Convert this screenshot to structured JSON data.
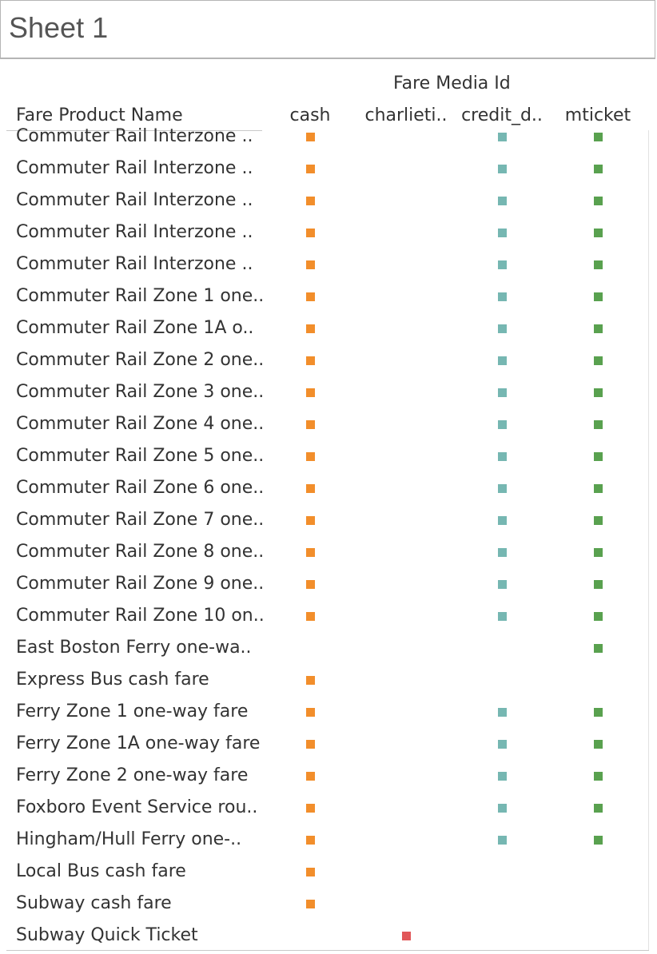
{
  "sheet": {
    "title": "Sheet 1"
  },
  "chart_data": {
    "type": "table",
    "column_group_title": "Fare Media Id",
    "row_header": "Fare Product Name",
    "columns": [
      {
        "key": "cash",
        "label": "cash",
        "color": "#f28e2b"
      },
      {
        "key": "charlieticket",
        "label": "charlieti..",
        "color": "#e15759"
      },
      {
        "key": "credit_debit",
        "label": "credit_d..",
        "color": "#76b7b2"
      },
      {
        "key": "mticket",
        "label": "mticket",
        "color": "#59a14f"
      }
    ],
    "rows": [
      {
        "label": "Commuter Rail Interzone ..",
        "marks": [
          "cash",
          "credit_debit",
          "mticket"
        ]
      },
      {
        "label": "Commuter Rail Interzone ..",
        "marks": [
          "cash",
          "credit_debit",
          "mticket"
        ]
      },
      {
        "label": "Commuter Rail Interzone ..",
        "marks": [
          "cash",
          "credit_debit",
          "mticket"
        ]
      },
      {
        "label": "Commuter Rail Interzone ..",
        "marks": [
          "cash",
          "credit_debit",
          "mticket"
        ]
      },
      {
        "label": "Commuter Rail Interzone ..",
        "marks": [
          "cash",
          "credit_debit",
          "mticket"
        ]
      },
      {
        "label": "Commuter Rail Zone 1 one..",
        "marks": [
          "cash",
          "credit_debit",
          "mticket"
        ]
      },
      {
        "label": "Commuter Rail Zone 1A o..",
        "marks": [
          "cash",
          "credit_debit",
          "mticket"
        ]
      },
      {
        "label": "Commuter Rail Zone 2 one..",
        "marks": [
          "cash",
          "credit_debit",
          "mticket"
        ]
      },
      {
        "label": "Commuter Rail Zone 3 one..",
        "marks": [
          "cash",
          "credit_debit",
          "mticket"
        ]
      },
      {
        "label": "Commuter Rail Zone 4 one..",
        "marks": [
          "cash",
          "credit_debit",
          "mticket"
        ]
      },
      {
        "label": "Commuter Rail Zone 5 one..",
        "marks": [
          "cash",
          "credit_debit",
          "mticket"
        ]
      },
      {
        "label": "Commuter Rail Zone 6 one..",
        "marks": [
          "cash",
          "credit_debit",
          "mticket"
        ]
      },
      {
        "label": "Commuter Rail Zone 7 one..",
        "marks": [
          "cash",
          "credit_debit",
          "mticket"
        ]
      },
      {
        "label": "Commuter Rail Zone 8 one..",
        "marks": [
          "cash",
          "credit_debit",
          "mticket"
        ]
      },
      {
        "label": "Commuter Rail Zone 9 one..",
        "marks": [
          "cash",
          "credit_debit",
          "mticket"
        ]
      },
      {
        "label": "Commuter Rail Zone 10 on..",
        "marks": [
          "cash",
          "credit_debit",
          "mticket"
        ]
      },
      {
        "label": "East Boston Ferry one-wa..",
        "marks": [
          "mticket"
        ]
      },
      {
        "label": "Express Bus cash fare",
        "marks": [
          "cash"
        ]
      },
      {
        "label": "Ferry Zone 1 one-way fare",
        "marks": [
          "cash",
          "credit_debit",
          "mticket"
        ]
      },
      {
        "label": "Ferry Zone 1A one-way fare",
        "marks": [
          "cash",
          "credit_debit",
          "mticket"
        ]
      },
      {
        "label": "Ferry Zone 2 one-way fare",
        "marks": [
          "cash",
          "credit_debit",
          "mticket"
        ]
      },
      {
        "label": "Foxboro Event Service rou..",
        "marks": [
          "cash",
          "credit_debit",
          "mticket"
        ]
      },
      {
        "label": "Hingham/Hull Ferry one-..",
        "marks": [
          "cash",
          "credit_debit",
          "mticket"
        ]
      },
      {
        "label": "Local Bus cash fare",
        "marks": [
          "cash"
        ]
      },
      {
        "label": "Subway cash fare",
        "marks": [
          "cash"
        ]
      },
      {
        "label": "Subway Quick Ticket",
        "marks": [
          "charlieticket"
        ]
      }
    ]
  }
}
